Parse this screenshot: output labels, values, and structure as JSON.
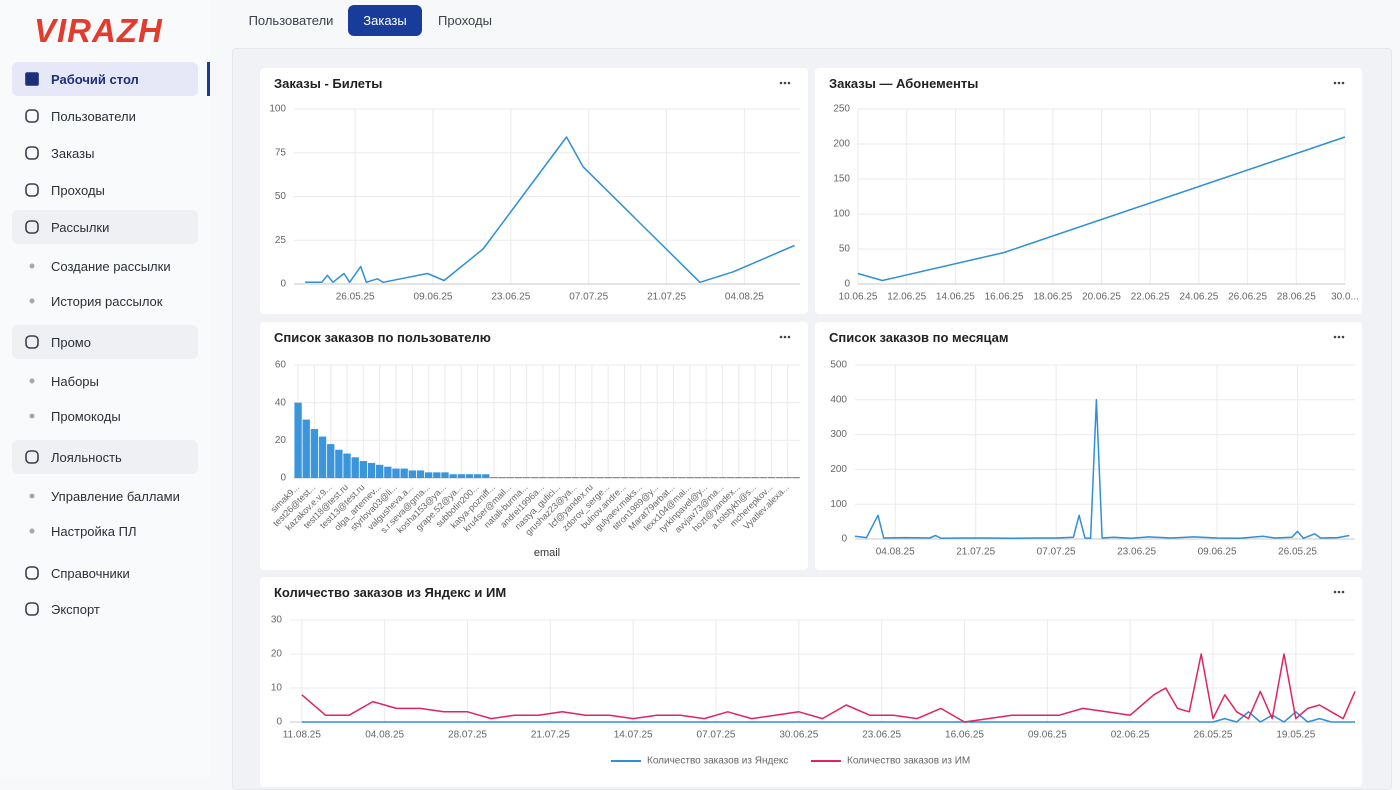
{
  "logo": "VIRAZH",
  "sidebar": [
    {
      "label": "Рабочий стол",
      "active": true
    },
    {
      "label": "Пользователи"
    },
    {
      "label": "Заказы"
    },
    {
      "label": "Проходы"
    },
    {
      "label": "Рассылки",
      "group": true
    },
    {
      "label": "Создание рассылки",
      "sub": true
    },
    {
      "label": "История рассылок",
      "sub": true
    },
    {
      "label": "Промо",
      "group": true
    },
    {
      "label": "Наборы",
      "sub": true
    },
    {
      "label": "Промокоды",
      "sub": true
    },
    {
      "label": "Лояльность",
      "group": true
    },
    {
      "label": "Управление баллами",
      "sub": true
    },
    {
      "label": "Настройка ПЛ",
      "sub": true
    },
    {
      "label": "Справочники"
    },
    {
      "label": "Экспорт"
    }
  ],
  "tabs": {
    "items": [
      "Пользователи",
      "Заказы",
      "Проходы"
    ],
    "active": 1
  },
  "chart_data": [
    {
      "type": "line",
      "title": "Заказы - Билеты",
      "color": "#2f8fd8",
      "x": [
        "17.05.25",
        "20.05.25",
        "21.05.25",
        "22.05.25",
        "24.05.25",
        "25.05.25",
        "27.05.25",
        "28.05.25",
        "30.05.25",
        "31.05.25",
        "08.06.25",
        "11.06.25",
        "18.06.25",
        "03.07.25",
        "06.07.25",
        "27.07.25",
        "02.08.25",
        "13.08.25"
      ],
      "values": [
        1,
        1,
        5,
        1,
        6,
        1,
        10,
        1,
        3,
        1,
        6,
        2,
        20,
        84,
        67,
        1,
        7,
        22
      ],
      "xlim": [
        "15.05.25",
        "14.08.25"
      ],
      "xticks": [
        "26.05.25",
        "09.06.25",
        "23.06.25",
        "07.07.25",
        "21.07.25",
        "04.08.25"
      ],
      "ylim": [
        0,
        100
      ],
      "yticks": [
        0,
        25,
        50,
        75,
        100
      ],
      "grid": true
    },
    {
      "type": "line",
      "title": "Заказы — Абонементы",
      "color": "#2f8fd8",
      "x": [
        "10.06.25",
        "11.06.25",
        "16.06.25",
        "30.06.25"
      ],
      "values": [
        15,
        5,
        45,
        210
      ],
      "xlim": [
        "10.06.25",
        "30.06.25"
      ],
      "xticks": [
        "10.06.25",
        "12.06.25",
        "14.06.25",
        "16.06.25",
        "18.06.25",
        "20.06.25",
        "22.06.25",
        "24.06.25",
        "26.06.25",
        "28.06.25",
        {
          "value": "30.06.25",
          "label": "30.0..."
        }
      ],
      "ylim": [
        0,
        250
      ],
      "yticks": [
        0,
        50,
        100,
        150,
        200,
        250
      ],
      "grid": true
    },
    {
      "type": "bar",
      "title": "Список заказов по пользователю",
      "color": "#3b95db",
      "xlabel": "email",
      "categories": [
        "simak9...",
        null,
        "test26@test...",
        null,
        "kazakov.e.v.9...",
        null,
        "test18@test.ru",
        null,
        "test13@test.ru",
        null,
        "olga_artemev...",
        null,
        "styrlova03@li...",
        null,
        "valgusheva.a...",
        null,
        "s.r.seva@gma...",
        null,
        "kosha153@ya...",
        null,
        "grape.52@ya...",
        null,
        "subbotin200...",
        null,
        "katya-pozniff...",
        null,
        "kru4ser@mail...",
        null,
        "natali-burma...",
        null,
        "andrei1996a...",
        null,
        "nastya_gufici...",
        null,
        "grushaz23@ya...",
        null,
        "lcf@yandex.ru",
        null,
        "zdorov_serge...",
        null,
        "bulnov.andre...",
        null,
        "gulyaev.maks...",
        null,
        "titron1989@y...",
        null,
        "Marat79arbat...",
        null,
        "lexx104@mai...",
        null,
        "tyrkinpavel@y...",
        null,
        "avvjav73@ma...",
        null,
        "hozt@yandex...",
        null,
        "a.tolstykh@s...",
        null,
        "mcherepkov...",
        null,
        "Vyatlev.alexa...",
        null
      ],
      "values": [
        40,
        31,
        26,
        22,
        18,
        15,
        13,
        11,
        9,
        8,
        7,
        6,
        5,
        5,
        4,
        4,
        3,
        3,
        3,
        2,
        2,
        2,
        2,
        2,
        0.5,
        0.5,
        0.5,
        0.5,
        0.5,
        0.5,
        0.5,
        0.5,
        0.5,
        0.5,
        0.5,
        0.5,
        0.5,
        0.5,
        0.5,
        0.5,
        0.5,
        0.5,
        0.5,
        0.5,
        0.5,
        0.5,
        0.5,
        0.5,
        0.5,
        0.5,
        0.5,
        0.5,
        0.5,
        0.5,
        0.5,
        0.5,
        0.5,
        0.5,
        0.5,
        0.5,
        0.5,
        0.5
      ],
      "ylim": [
        0,
        60
      ],
      "yticks": [
        0,
        20,
        40,
        60
      ],
      "grid": true
    },
    {
      "type": "line",
      "title": "Список заказов по месяцам",
      "color": "#2f8fd8",
      "x": [
        "11.08.25",
        "09.08.25",
        "07.08.25",
        "06.08.25",
        "02.08.25",
        "29.07.25",
        "28.07.25",
        "27.07.25",
        "23.07.25",
        "19.07.25",
        "15.07.25",
        "11.07.25",
        "07.07.25",
        "04.07.25",
        "03.07.25",
        "02.07.25",
        "01.07.25",
        "30.06.25",
        "29.06.25",
        "27.06.25",
        "24.06.25",
        "21.06.25",
        "17.06.25",
        "13.06.25",
        "09.06.25",
        "05.06.25",
        "01.06.25",
        "30.05.25",
        "27.05.25",
        "26.05.25",
        "25.05.25",
        "23.05.25",
        "22.05.25",
        "19.05.25",
        "17.05.25"
      ],
      "values": [
        8,
        4,
        68,
        3,
        4,
        3,
        10,
        2,
        3,
        3,
        2,
        3,
        3,
        5,
        68,
        3,
        2,
        400,
        3,
        5,
        2,
        6,
        3,
        6,
        3,
        2,
        8,
        3,
        5,
        22,
        2,
        15,
        3,
        4,
        10
      ],
      "xlim": [
        "11.08.25",
        "16.05.25"
      ],
      "xticks": [
        "04.08.25",
        "21.07.25",
        "07.07.25",
        "23.06.25",
        "09.06.25",
        "26.05.25"
      ],
      "ylim": [
        0,
        500
      ],
      "yticks": [
        0,
        100,
        200,
        300,
        400,
        500
      ],
      "grid": true
    },
    {
      "type": "line",
      "title": "Количество заказов из Яндекс и ИМ",
      "legend": "bottom",
      "x": [
        "11.08.25",
        "09.08.25",
        "07.08.25",
        "05.08.25",
        "03.08.25",
        "01.08.25",
        "30.07.25",
        "28.07.25",
        "26.07.25",
        "24.07.25",
        "22.07.25",
        "20.07.25",
        "18.07.25",
        "16.07.25",
        "14.07.25",
        "12.07.25",
        "10.07.25",
        "08.07.25",
        "06.07.25",
        "04.07.25",
        "02.07.25",
        "30.06.25",
        "28.06.25",
        "26.06.25",
        "24.06.25",
        "22.06.25",
        "20.06.25",
        "18.06.25",
        "16.06.25",
        "14.06.25",
        "12.06.25",
        "10.06.25",
        "08.06.25",
        "06.06.25",
        "04.06.25",
        "02.06.25",
        "31.05.25",
        "30.05.25",
        "29.05.25",
        "28.05.25",
        "27.05.25",
        "26.05.25",
        "25.05.25",
        "24.05.25",
        "23.05.25",
        "22.05.25",
        "21.05.25",
        "20.05.25",
        "19.05.25",
        "18.05.25",
        "17.05.25",
        "16.05.25",
        "15.05.25",
        "14.05.25"
      ],
      "series": [
        {
          "name": "Количество заказов из Яндекс",
          "color": "#2f8fd8",
          "values": [
            0,
            0,
            0,
            0,
            0,
            0,
            0,
            0,
            0,
            0,
            0,
            0,
            0,
            0,
            0,
            0,
            0,
            0,
            0,
            0,
            0,
            0,
            0,
            0,
            0,
            0,
            0,
            0,
            0,
            0,
            0,
            0,
            0,
            0,
            0,
            0,
            0,
            0,
            0,
            0,
            0,
            0,
            1,
            0,
            3,
            0,
            2,
            0,
            3,
            0,
            1,
            0,
            0,
            0
          ]
        },
        {
          "name": "Количество заказов из ИМ",
          "color": "#e0245e",
          "values": [
            8,
            2,
            2,
            6,
            4,
            4,
            3,
            3,
            1,
            2,
            2,
            3,
            2,
            2,
            1,
            2,
            2,
            1,
            3,
            1,
            2,
            3,
            1,
            5,
            2,
            2,
            1,
            4,
            0,
            1,
            2,
            2,
            2,
            4,
            3,
            2,
            8,
            10,
            4,
            3,
            20,
            1,
            8,
            3,
            1,
            9,
            1,
            20,
            1,
            4,
            5,
            3,
            1,
            9
          ]
        }
      ],
      "xlim": [
        "12.08.25",
        "14.05.25"
      ],
      "xticks": [
        "11.08.25",
        "04.08.25",
        "28.07.25",
        "21.07.25",
        "14.07.25",
        "07.07.25",
        "30.06.25",
        "23.06.25",
        "16.06.25",
        "09.06.25",
        "02.06.25",
        "26.05.25",
        "19.05.25"
      ],
      "ylim": [
        0,
        30
      ],
      "yticks": [
        0,
        10,
        20,
        30
      ],
      "grid": true
    }
  ]
}
